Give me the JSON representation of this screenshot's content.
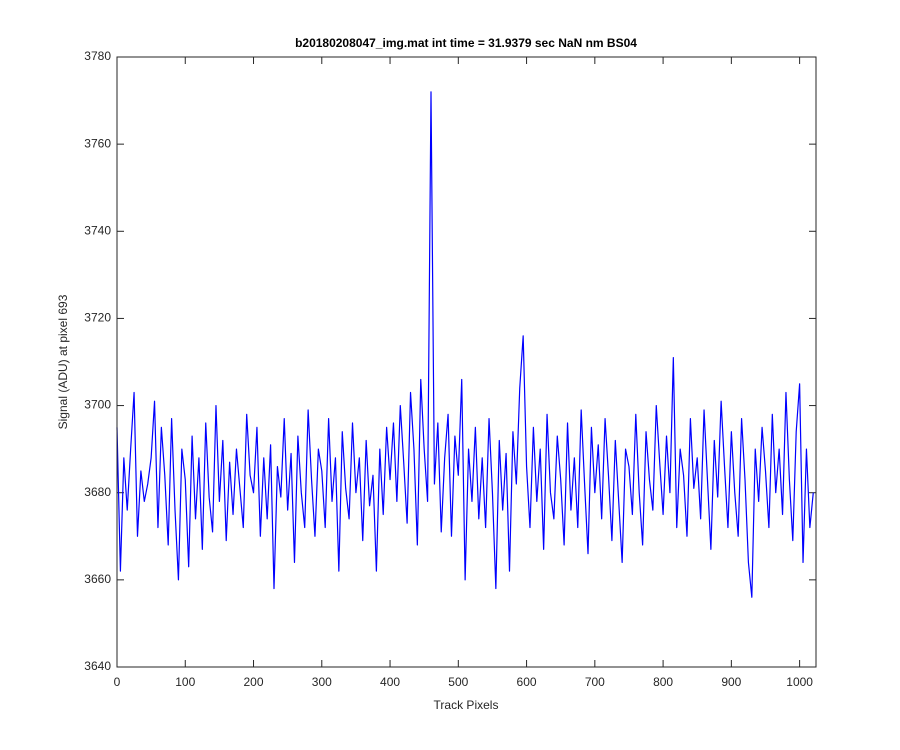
{
  "chart_data": {
    "type": "line",
    "title": "b20180208047_img.mat int time = 31.9379 sec  NaN nm BS04",
    "xlabel": "Track Pixels",
    "ylabel": "Signal (ADU) at pixel 693",
    "xlim": [
      0,
      1024
    ],
    "ylim": [
      3640,
      3780
    ],
    "xticks": [
      0,
      100,
      200,
      300,
      400,
      500,
      600,
      700,
      800,
      900,
      1000
    ],
    "yticks": [
      3640,
      3660,
      3680,
      3700,
      3720,
      3740,
      3760,
      3780
    ],
    "grid": false,
    "series": [
      {
        "color": "#0000ff",
        "x": [
          0,
          5,
          10,
          15,
          20,
          25,
          30,
          35,
          40,
          45,
          50,
          55,
          60,
          65,
          70,
          75,
          80,
          85,
          90,
          95,
          100,
          105,
          110,
          115,
          120,
          125,
          130,
          135,
          140,
          145,
          150,
          155,
          160,
          165,
          170,
          175,
          180,
          185,
          190,
          195,
          200,
          205,
          210,
          215,
          220,
          225,
          230,
          235,
          240,
          245,
          250,
          255,
          260,
          265,
          270,
          275,
          280,
          285,
          290,
          295,
          300,
          305,
          310,
          315,
          320,
          325,
          330,
          335,
          340,
          345,
          350,
          355,
          360,
          365,
          370,
          375,
          380,
          385,
          390,
          395,
          400,
          405,
          410,
          415,
          420,
          425,
          430,
          435,
          440,
          445,
          450,
          455,
          460,
          465,
          470,
          475,
          480,
          485,
          490,
          495,
          500,
          505,
          510,
          515,
          520,
          525,
          530,
          535,
          540,
          545,
          550,
          555,
          560,
          565,
          570,
          575,
          580,
          585,
          590,
          595,
          600,
          605,
          610,
          615,
          620,
          625,
          630,
          635,
          640,
          645,
          650,
          655,
          660,
          665,
          670,
          675,
          680,
          685,
          690,
          695,
          700,
          705,
          710,
          715,
          720,
          725,
          730,
          735,
          740,
          745,
          750,
          755,
          760,
          765,
          770,
          775,
          780,
          785,
          790,
          795,
          800,
          805,
          810,
          815,
          820,
          825,
          830,
          835,
          840,
          845,
          850,
          855,
          860,
          865,
          870,
          875,
          880,
          885,
          890,
          895,
          900,
          905,
          910,
          915,
          920,
          925,
          930,
          935,
          940,
          945,
          950,
          955,
          960,
          965,
          970,
          975,
          980,
          985,
          990,
          995,
          1000,
          1005,
          1010,
          1015,
          1020
        ],
        "values": [
          3695,
          3662,
          3688,
          3676,
          3690,
          3703,
          3670,
          3685,
          3678,
          3682,
          3688,
          3701,
          3672,
          3695,
          3684,
          3668,
          3697,
          3676,
          3660,
          3690,
          3683,
          3663,
          3693,
          3674,
          3688,
          3667,
          3696,
          3679,
          3671,
          3700,
          3678,
          3692,
          3669,
          3687,
          3675,
          3690,
          3681,
          3672,
          3698,
          3684,
          3680,
          3695,
          3670,
          3688,
          3674,
          3691,
          3658,
          3686,
          3679,
          3697,
          3676,
          3689,
          3664,
          3693,
          3680,
          3672,
          3699,
          3683,
          3670,
          3690,
          3685,
          3672,
          3697,
          3678,
          3688,
          3662,
          3694,
          3681,
          3674,
          3696,
          3680,
          3688,
          3669,
          3692,
          3677,
          3684,
          3662,
          3690,
          3675,
          3695,
          3683,
          3696,
          3678,
          3700,
          3687,
          3673,
          3703,
          3690,
          3668,
          3706,
          3690,
          3678,
          3772,
          3682,
          3696,
          3671,
          3688,
          3698,
          3670,
          3693,
          3684,
          3706,
          3660,
          3690,
          3678,
          3695,
          3674,
          3688,
          3672,
          3697,
          3680,
          3658,
          3692,
          3676,
          3689,
          3662,
          3694,
          3682,
          3704,
          3716,
          3686,
          3672,
          3695,
          3678,
          3690,
          3667,
          3698,
          3680,
          3674,
          3693,
          3683,
          3668,
          3696,
          3676,
          3688,
          3672,
          3699,
          3682,
          3666,
          3695,
          3680,
          3691,
          3674,
          3697,
          3684,
          3669,
          3692,
          3678,
          3664,
          3690,
          3686,
          3675,
          3698,
          3680,
          3668,
          3694,
          3683,
          3676,
          3700,
          3687,
          3675,
          3693,
          3680,
          3711,
          3672,
          3690,
          3684,
          3670,
          3697,
          3681,
          3688,
          3674,
          3699,
          3683,
          3667,
          3692,
          3679,
          3701,
          3686,
          3672,
          3694,
          3680,
          3670,
          3697,
          3683,
          3664,
          3656,
          3690,
          3678,
          3695,
          3685,
          3672,
          3698,
          3680,
          3690,
          3675,
          3703,
          3683,
          3669,
          3694,
          3705,
          3664,
          3690,
          3672,
          3680
        ]
      }
    ]
  }
}
